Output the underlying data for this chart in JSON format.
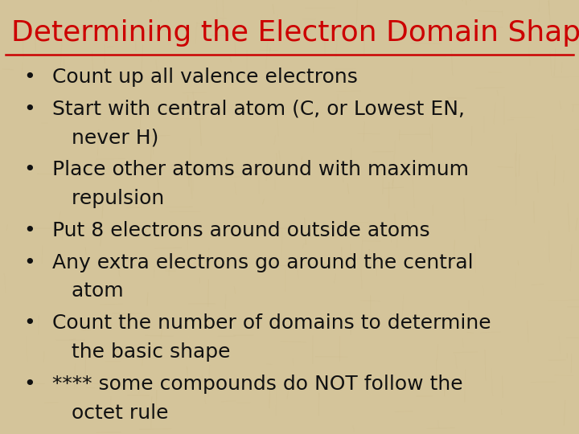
{
  "title": "Determining the Electron Domain Shape",
  "title_color": "#CC0000",
  "title_fontsize": 26,
  "title_font": "Comic Sans MS",
  "bullet_font": "Comic Sans MS",
  "bullet_fontsize": 18,
  "bullet_color": "#111111",
  "background_color": "#D4C49A",
  "texture_color": "#C8B882",
  "underline_color": "#CC0000",
  "bullets": [
    [
      "Count up all valence electrons"
    ],
    [
      "Start with central atom (C, or Lowest EN,",
      "   never H)"
    ],
    [
      "Place other atoms around with maximum",
      "   repulsion"
    ],
    [
      "Put 8 electrons around outside atoms"
    ],
    [
      "Any extra electrons go around the central",
      "   atom"
    ],
    [
      "Count the number of domains to determine",
      "   the basic shape"
    ],
    [
      "**** some compounds do NOT follow the",
      "   octet rule"
    ]
  ]
}
